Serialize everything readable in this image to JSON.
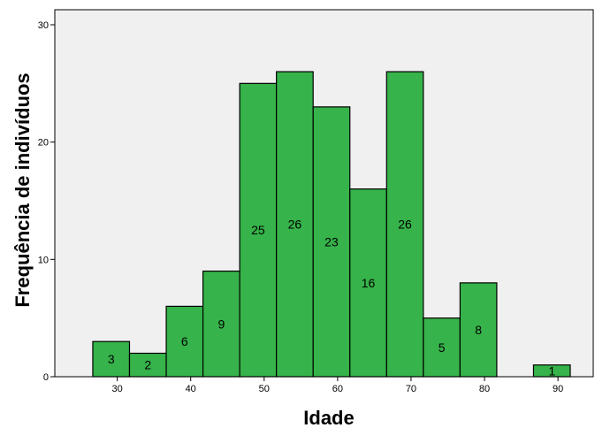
{
  "chart_data": {
    "type": "bar",
    "subtype": "histogram",
    "title": "",
    "xlabel": "Idade",
    "ylabel": "Frequência de indivíduos",
    "bins": [
      {
        "start": 26.67,
        "end": 31.67,
        "value": 3,
        "label": "3"
      },
      {
        "start": 31.67,
        "end": 36.67,
        "value": 2,
        "label": "2"
      },
      {
        "start": 36.67,
        "end": 41.67,
        "value": 6,
        "label": "6"
      },
      {
        "start": 41.67,
        "end": 46.67,
        "value": 9,
        "label": "9"
      },
      {
        "start": 46.67,
        "end": 51.67,
        "value": 25,
        "label": "25"
      },
      {
        "start": 51.67,
        "end": 56.67,
        "value": 26,
        "label": "26"
      },
      {
        "start": 56.67,
        "end": 61.67,
        "value": 23,
        "label": "23"
      },
      {
        "start": 61.67,
        "end": 66.67,
        "value": 16,
        "label": "16"
      },
      {
        "start": 66.67,
        "end": 71.67,
        "value": 26,
        "label": "26"
      },
      {
        "start": 71.67,
        "end": 76.67,
        "value": 5,
        "label": "5"
      },
      {
        "start": 76.67,
        "end": 81.67,
        "value": 8,
        "label": "8"
      },
      {
        "start": 86.67,
        "end": 91.67,
        "value": 1,
        "label": "1"
      }
    ],
    "x_ticks": [
      "30",
      "40",
      "50",
      "60",
      "70",
      "80",
      "90"
    ],
    "y_ticks": [
      "0",
      "10",
      "20",
      "30"
    ],
    "xlim": [
      21.5,
      94.8
    ],
    "ylim": [
      0,
      30
    ],
    "grid": false,
    "colors": {
      "bar_fill": "#36b34a",
      "bar_stroke": "#000000",
      "plot_background": "#f0f0f0"
    }
  }
}
